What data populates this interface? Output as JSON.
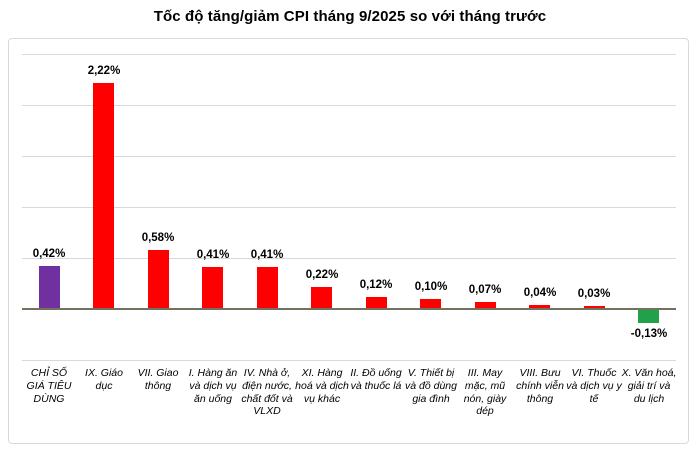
{
  "chart_data": {
    "type": "bar",
    "title": "Tốc độ tăng/giảm CPI tháng 9/2025 so với tháng trước",
    "categories": [
      "CHỈ SỐ GIÁ TIÊU DÙNG",
      "IX. Giáo dục",
      "VII. Giao thông",
      "I. Hàng ăn và dịch vụ ăn uống",
      "IV. Nhà ở, điện nước, chất đốt và VLXD",
      "XI. Hàng hoá và dịch vụ khác",
      "II. Đồ uống và thuốc lá",
      "V. Thiết bị và đồ dùng gia đình",
      "III. May mặc, mũ nón, giày dép",
      "VIII. Bưu chính viễn thông",
      "VI. Thuốc và dịch vụ y tế",
      "X. Văn hoá, giải trí và du lịch"
    ],
    "values": [
      0.42,
      2.22,
      0.58,
      0.41,
      0.41,
      0.22,
      0.12,
      0.1,
      0.07,
      0.04,
      0.03,
      -0.13
    ],
    "value_labels": [
      "0,42%",
      "2,22%",
      "0,58%",
      "0,41%",
      "0,41%",
      "0,22%",
      "0,12%",
      "0,10%",
      "0,07%",
      "0,04%",
      "0,03%",
      "-0,13%"
    ],
    "bar_colors": [
      "#7030A0",
      "#FF0000",
      "#FF0000",
      "#FF0000",
      "#FF0000",
      "#FF0000",
      "#FF0000",
      "#FF0000",
      "#FF0000",
      "#FF0000",
      "#FF0000",
      "#21A149"
    ],
    "xlabel": "",
    "ylabel": "",
    "ylim": [
      -0.5,
      2.5
    ],
    "gridlines": [
      2.5,
      2.0,
      1.5,
      1.0,
      0.5,
      0.0,
      -0.5
    ],
    "grid": true,
    "legend": false,
    "colors": {
      "grid": "#d9d9d9",
      "axis": "#72725e",
      "text": "#000000",
      "card_border": "#d9d9d9",
      "background": "#ffffff"
    }
  }
}
